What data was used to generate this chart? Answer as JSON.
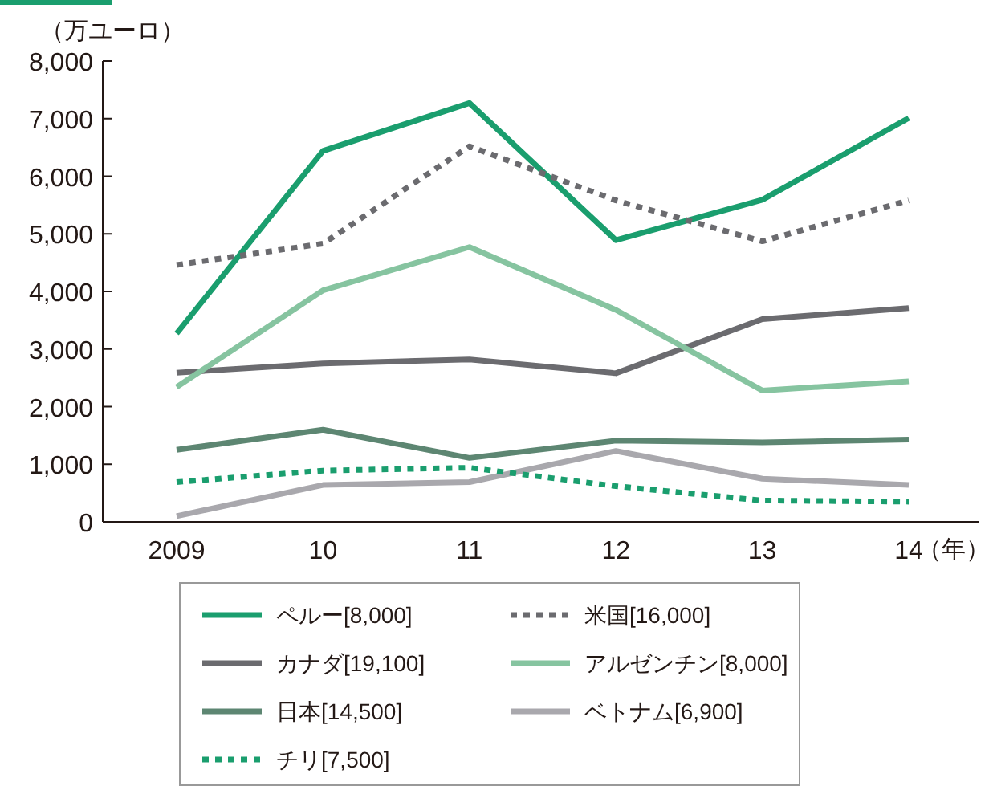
{
  "chart_data": {
    "type": "line",
    "ylabel": "（万ユーロ）",
    "xlabel": "（年）",
    "categories": [
      "2009",
      "10",
      "11",
      "12",
      "13",
      "14"
    ],
    "ylim": [
      0,
      8000
    ],
    "yticks": [
      {
        "value": 0,
        "label": "0"
      },
      {
        "value": 1000,
        "label": "1,000"
      },
      {
        "value": 2000,
        "label": "2,000"
      },
      {
        "value": 3000,
        "label": "3,000"
      },
      {
        "value": 4000,
        "label": "4,000"
      },
      {
        "value": 5000,
        "label": "5,000"
      },
      {
        "value": 6000,
        "label": "6,000"
      },
      {
        "value": 7000,
        "label": "7,000"
      },
      {
        "value": 8000,
        "label": "8,000"
      }
    ],
    "grid": false,
    "legend": "bottom",
    "marker": "none",
    "series": [
      {
        "name": "ペルー[8,000]",
        "color": "#1a9e6e",
        "line_style": "solid",
        "values": [
          3270,
          6440,
          7270,
          4890,
          5590,
          7010
        ]
      },
      {
        "name": "米国[16,000]",
        "color": "#6b6b6f",
        "line_style": "dotted",
        "values": [
          4460,
          4830,
          6520,
          5580,
          4870,
          5580
        ]
      },
      {
        "name": "カナダ[19,100]",
        "color": "#6b6b6f",
        "line_style": "solid",
        "values": [
          2590,
          2750,
          2820,
          2580,
          3520,
          3710
        ]
      },
      {
        "name": "アルゼンチン[8,000]",
        "color": "#86c4a0",
        "line_style": "solid",
        "values": [
          2340,
          4020,
          4770,
          3680,
          2280,
          2440
        ]
      },
      {
        "name": "日本[14,500]",
        "color": "#5d8672",
        "line_style": "solid",
        "values": [
          1250,
          1600,
          1110,
          1410,
          1380,
          1430
        ]
      },
      {
        "name": "ベトナム[6,900]",
        "color": "#a9a8ad",
        "line_style": "solid",
        "values": [
          100,
          640,
          690,
          1230,
          750,
          640
        ]
      },
      {
        "name": "チリ[7,500]",
        "color": "#1a9e6e",
        "line_style": "dotted",
        "values": [
          690,
          890,
          940,
          620,
          370,
          350
        ]
      }
    ]
  }
}
